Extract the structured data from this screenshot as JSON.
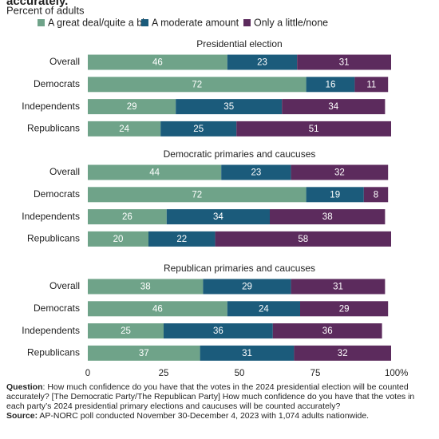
{
  "header": {
    "title": "accurately.",
    "subtitle": "Percent of adults"
  },
  "chart_data": [
    {
      "type": "bar",
      "title": "Presidential election",
      "categories": [
        "Overall",
        "Democrats",
        "Independents",
        "Republicans"
      ],
      "series": [
        {
          "name": "A great deal/quite a bit",
          "color": "#6fa389",
          "values": [
            46,
            72,
            29,
            24
          ]
        },
        {
          "name": "A moderate amount",
          "color": "#1b5b7b",
          "values": [
            23,
            16,
            35,
            25
          ]
        },
        {
          "name": "Only a little/none",
          "color": "#5c2b5d",
          "values": [
            31,
            11,
            34,
            51
          ]
        }
      ],
      "xlim": [
        0,
        100
      ]
    },
    {
      "type": "bar",
      "title": "Democratic primaries and caucuses",
      "categories": [
        "Overall",
        "Democrats",
        "Independents",
        "Republicans"
      ],
      "series": [
        {
          "name": "A great deal/quite a bit",
          "color": "#6fa389",
          "values": [
            44,
            72,
            26,
            20
          ]
        },
        {
          "name": "A moderate amount",
          "color": "#1b5b7b",
          "values": [
            23,
            19,
            34,
            22
          ]
        },
        {
          "name": "Only a little/none",
          "color": "#5c2b5d",
          "values": [
            32,
            8,
            38,
            58
          ]
        }
      ],
      "xlim": [
        0,
        100
      ]
    },
    {
      "type": "bar",
      "title": "Republican primaries and caucuses",
      "categories": [
        "Overall",
        "Democrats",
        "Independents",
        "Republicans"
      ],
      "series": [
        {
          "name": "A great deal/quite a bit",
          "color": "#6fa389",
          "values": [
            38,
            46,
            25,
            37
          ]
        },
        {
          "name": "A moderate amount",
          "color": "#1b5b7b",
          "values": [
            29,
            24,
            36,
            31
          ]
        },
        {
          "name": "Only a little/none",
          "color": "#5c2b5d",
          "values": [
            31,
            29,
            36,
            32
          ]
        }
      ],
      "xlim": [
        0,
        100
      ],
      "xticks": [
        0,
        25,
        50,
        75,
        {
          "value": 100,
          "label": "100%"
        }
      ]
    }
  ],
  "footer": {
    "question_label": "Question",
    "question": ": How much confidence do you have that the votes in the 2024 presidential election will be counted accurately? [The Democratic Party/The Republican Party] How much confidence do you have that the votes in each party’s 2024 presidential primary elections and caucuses will be counted accurately?",
    "source_label": "Source:",
    "source": " AP-NORC poll conducted November 30-December 4, 2023 with 1,074 adults nationwide."
  }
}
